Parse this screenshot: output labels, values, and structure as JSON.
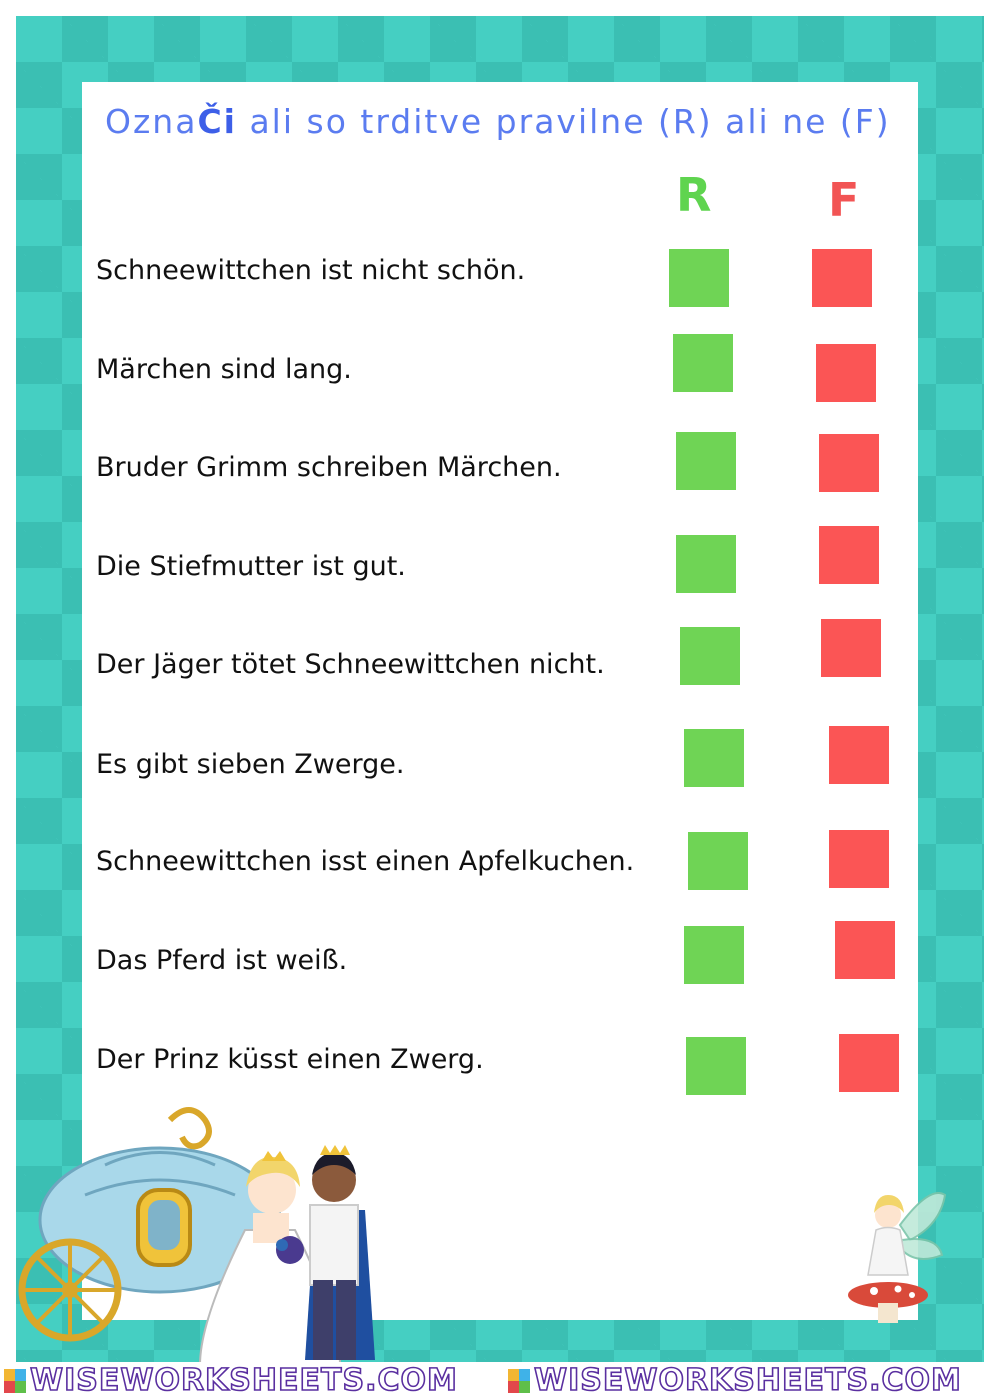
{
  "instruction": {
    "prefix": "Ozna",
    "bold": "Či",
    "suffix": " ali so trditve pravilne (R) ali ne (F)"
  },
  "columns": {
    "r": "R",
    "f": "F"
  },
  "statements": [
    "Schneewittchen ist nicht schön.",
    "Märchen sind lang.",
    "Bruder Grimm schreiben Märchen.",
    "Die Stiefmutter ist gut.",
    "Der Jäger tötet Schneewittchen nicht.",
    "Es gibt sieben Zwerge.",
    "Schneewittchen isst einen Apfelkuchen.",
    "Das Pferd ist weiß.",
    "Der Prinz küsst einen Zwerg."
  ],
  "footer": {
    "brand_1": "WISEWORKSHEETS.COM",
    "brand_2": "WISEWORKSHEETS.COM"
  },
  "colors": {
    "true_box": "#6fd455",
    "false_box": "#fb5555",
    "frame": "#45cfc2",
    "instruction": "#5b7cf0"
  },
  "illustrations": [
    "carriage",
    "bride",
    "prince",
    "fairy-on-mushroom"
  ]
}
